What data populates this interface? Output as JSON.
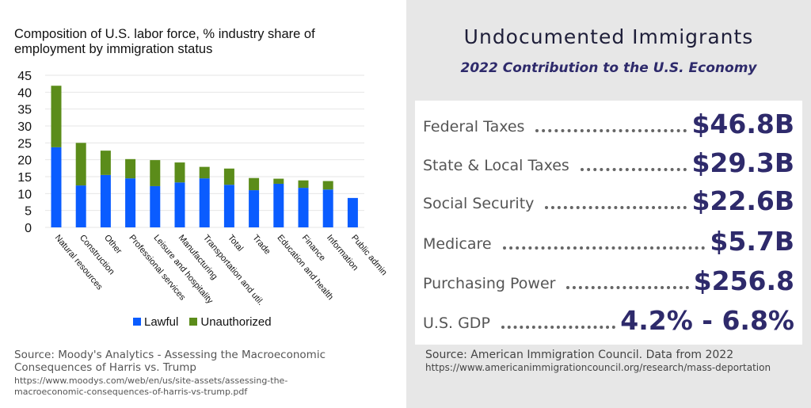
{
  "left": {
    "source": "Source: Moody's Analytics - Assessing the Macroeconomic Consequences of Harris vs. Trump",
    "url": "https://www.moodys.com/web/en/us/site-assets/assessing-the-macroeconomic-consequences-of-harris-vs-trump.pdf"
  },
  "chart_data": {
    "type": "bar",
    "stacked": true,
    "title": "Composition of U.S. labor force, % industry share of employment by immigration status",
    "categories": [
      "Natural resources",
      "Construction",
      "Other",
      "Professional services",
      "Leisure and hospitality",
      "Manufacturing",
      "Transportation and util.",
      "Total",
      "Trade",
      "Education and health",
      "Finance",
      "Information",
      "Public admin"
    ],
    "series": [
      {
        "name": "Lawful",
        "color": "#0a5cff",
        "values": [
          23.7,
          12.4,
          15.5,
          14.5,
          12.2,
          13.3,
          14.5,
          12.6,
          11.0,
          12.9,
          11.7,
          11.2,
          8.7
        ]
      },
      {
        "name": "Unauthorized",
        "color": "#5b8c1a",
        "values": [
          18.2,
          12.6,
          7.2,
          5.7,
          7.7,
          5.9,
          3.4,
          4.8,
          3.6,
          1.5,
          2.2,
          2.5,
          0
        ]
      }
    ],
    "ylim": [
      0,
      45
    ],
    "yticks": [
      0,
      5,
      10,
      15,
      20,
      25,
      30,
      35,
      40,
      45
    ],
    "grid": true,
    "legend": "bottom"
  },
  "right": {
    "title": "Undocumented Immigrants",
    "subtitle": "2022 Contribution to the U.S. Economy",
    "rows": [
      {
        "label": "Federal Taxes",
        "value": "$46.8B"
      },
      {
        "label": "State & Local Taxes",
        "value": "$29.3B"
      },
      {
        "label": "Social Security",
        "value": "$22.6B"
      },
      {
        "label": "Medicare",
        "value": "$5.7B"
      },
      {
        "label": "Purchasing Power",
        "value": "$256.8"
      },
      {
        "label": "U.S. GDP",
        "value": "4.2% - 6.8%"
      }
    ],
    "source": "Source: American Immigration Council. Data from 2022",
    "url": "https://www.americanimmigrationcouncil.org/research/mass-deportation"
  }
}
